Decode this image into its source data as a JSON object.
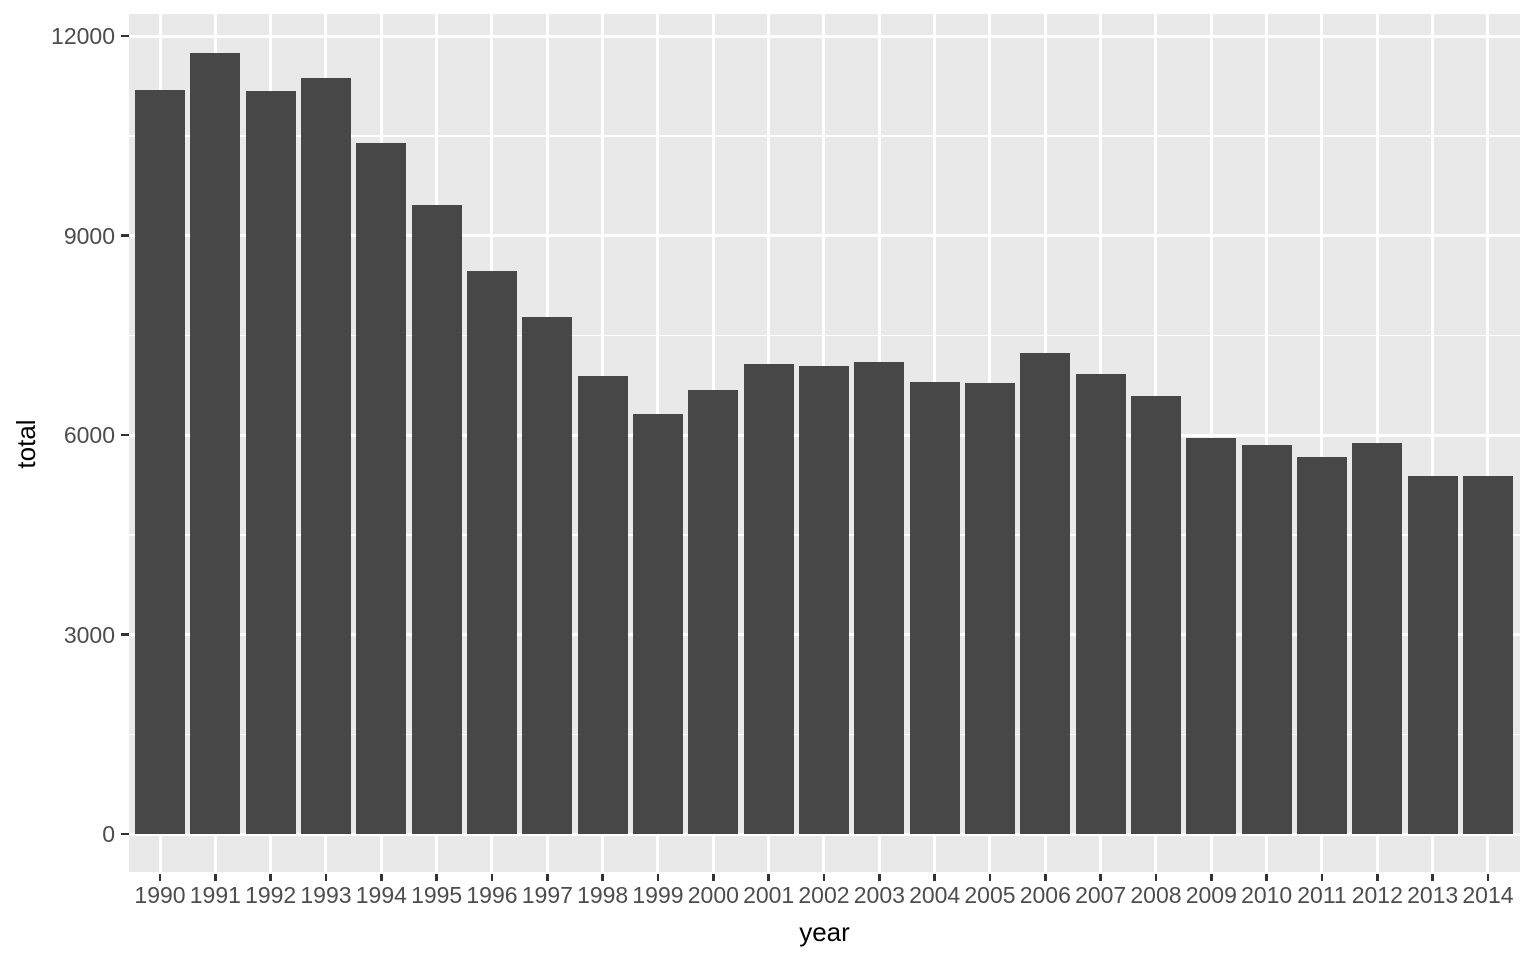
{
  "chart_data": {
    "type": "bar",
    "title": "",
    "xlabel": "year",
    "ylabel": "total",
    "categories": [
      "1990",
      "1991",
      "1992",
      "1993",
      "1994",
      "1995",
      "1996",
      "1997",
      "1998",
      "1999",
      "2000",
      "2001",
      "2002",
      "2003",
      "2004",
      "2005",
      "2006",
      "2007",
      "2008",
      "2009",
      "2010",
      "2011",
      "2012",
      "2013",
      "2014"
    ],
    "values": [
      11190,
      11750,
      11170,
      11370,
      10390,
      9460,
      8470,
      7780,
      6890,
      6320,
      6680,
      7070,
      7040,
      7100,
      6800,
      6780,
      7230,
      6920,
      6590,
      5960,
      5850,
      5670,
      5880,
      5380,
      5380
    ],
    "ylim": [
      0,
      12350
    ],
    "y_ticks": [
      0,
      3000,
      6000,
      9000,
      12000
    ],
    "y_tick_labels": [
      "0",
      "3000",
      "6000",
      "9000",
      "12000"
    ],
    "y_minor_ticks": [
      1500,
      4500,
      7500,
      10500
    ],
    "grid": true,
    "legend": "none",
    "colors": {
      "bar_fill": "#474747",
      "panel_background": "#E9E9E9",
      "grid": "#FFFFFF",
      "axis_text": "#4D4D4D",
      "axis_title": "#000000",
      "tick_mark": "#333333",
      "page_background": "#FFFFFF"
    }
  }
}
